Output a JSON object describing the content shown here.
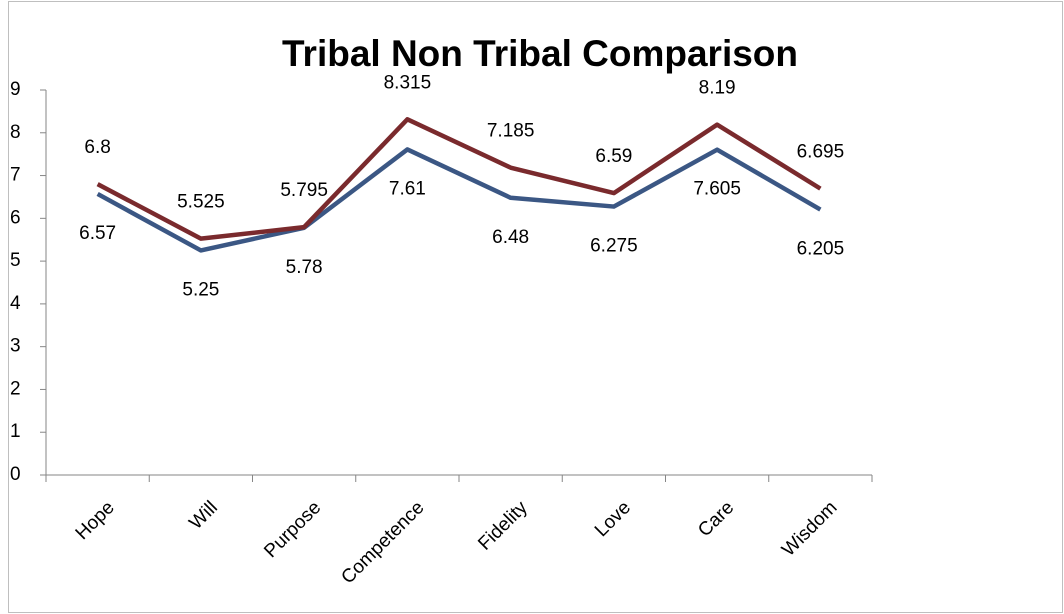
{
  "chart_data": {
    "type": "line",
    "title": "Tribal Non Tribal Comparison",
    "categories": [
      "Hope",
      "Will",
      "Purpose",
      "Competence",
      "Fidelity",
      "Love",
      "Care",
      "Wisdom"
    ],
    "series": [
      {
        "color": "#3b5784",
        "values": [
          6.57,
          5.25,
          5.78,
          7.61,
          6.48,
          6.275,
          7.605,
          6.205
        ]
      },
      {
        "color": "#7a2a2d",
        "values": [
          6.8,
          5.525,
          5.795,
          8.315,
          7.185,
          6.59,
          8.19,
          6.695
        ]
      }
    ],
    "ylim": [
      0,
      9
    ],
    "yticks": [
      0,
      1,
      2,
      3,
      4,
      5,
      6,
      7,
      8,
      9
    ],
    "grid": false,
    "data_labels": true
  }
}
